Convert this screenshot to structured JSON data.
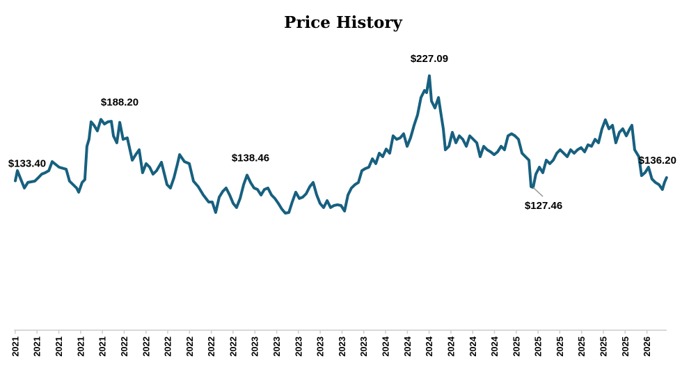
{
  "chart_data": {
    "type": "line",
    "title": "Price History",
    "xlabel": "",
    "ylabel": "",
    "ylim": [
      0,
      250
    ],
    "xlim": [
      2021.167,
      2026.15
    ],
    "grid": false,
    "line_color": "#17607f",
    "x_tick_values": [
      2021.167,
      2021.333,
      2021.5,
      2021.667,
      2021.833,
      2022.0,
      2022.167,
      2022.333,
      2022.5,
      2022.667,
      2022.833,
      2023.0,
      2023.167,
      2023.333,
      2023.5,
      2023.667,
      2023.833,
      2024.0,
      2024.167,
      2024.333,
      2024.5,
      2024.667,
      2024.833,
      2025.0,
      2025.167,
      2025.333,
      2025.5,
      2025.667,
      2025.833,
      2026.0
    ],
    "x_tick_labels": [
      "2021",
      "2021",
      "2021",
      "2021",
      "2021",
      "2022",
      "2022",
      "2022",
      "2022",
      "2022",
      "2022",
      "2023",
      "2023",
      "2023",
      "2023",
      "2023",
      "2023",
      "2024",
      "2024",
      "2024",
      "2024",
      "2024",
      "2024",
      "2025",
      "2025",
      "2025",
      "2025",
      "2025",
      "2025",
      "2026"
    ],
    "series": [
      {
        "x": [
          2021.167,
          2021.183,
          2021.21,
          2021.236,
          2021.263,
          2021.316,
          2021.343,
          2021.369,
          2021.396,
          2021.423,
          2021.449,
          2021.502,
          2021.556,
          2021.582,
          2021.636,
          2021.652,
          2021.678,
          2021.699,
          2021.715,
          2021.731,
          2021.747,
          2021.769,
          2021.795,
          2021.822,
          2021.849,
          2021.875,
          2021.902,
          2021.918,
          2021.944,
          2021.966,
          2021.992,
          2022.024,
          2022.062,
          2022.088,
          2022.115,
          2022.141,
          2022.168,
          2022.195,
          2022.221,
          2022.248,
          2022.285,
          2022.328,
          2022.354,
          2022.381,
          2022.408,
          2022.424,
          2022.461,
          2022.498,
          2022.53,
          2022.567,
          2022.605,
          2022.647,
          2022.674,
          2022.7,
          2022.727,
          2022.754,
          2022.78,
          2022.807,
          2022.834,
          2022.86,
          2022.887,
          2022.914,
          2022.94,
          2022.967,
          2022.994,
          2023.02,
          2023.047,
          2023.073,
          2023.1,
          2023.127,
          2023.153,
          2023.18,
          2023.206,
          2023.233,
          2023.26,
          2023.286,
          2023.313,
          2023.34,
          2023.366,
          2023.393,
          2023.42,
          2023.446,
          2023.473,
          2023.499,
          2023.526,
          2023.553,
          2023.579,
          2023.606,
          2023.632,
          2023.659,
          2023.686,
          2023.712,
          2023.739,
          2023.766,
          2023.792,
          2023.819,
          2023.845,
          2023.872,
          2023.899,
          2023.925,
          2023.952,
          2023.978,
          2024.005,
          2024.032,
          2024.058,
          2024.085,
          2024.112,
          2024.138,
          2024.165,
          2024.191,
          2024.218,
          2024.245,
          2024.271,
          2024.298,
          2024.314,
          2024.335,
          2024.351,
          2024.378,
          2024.405,
          2024.421,
          2024.442,
          2024.458,
          2024.485,
          2024.511,
          2024.538,
          2024.564,
          2024.591,
          2024.618,
          2024.644,
          2024.671,
          2024.698,
          2024.724,
          2024.751,
          2024.777,
          2024.804,
          2024.831,
          2024.857,
          2024.884,
          2024.91,
          2024.937,
          2024.964,
          2024.99,
          2025.017,
          2025.044,
          2025.07,
          2025.097,
          2025.113,
          2025.129,
          2025.15,
          2025.177,
          2025.203,
          2025.23,
          2025.257,
          2025.283,
          2025.31,
          2025.336,
          2025.363,
          2025.39,
          2025.416,
          2025.443,
          2025.469,
          2025.496,
          2025.523,
          2025.549,
          2025.576,
          2025.603,
          2025.629,
          2025.656,
          2025.682,
          2025.709,
          2025.736,
          2025.762,
          2025.789,
          2025.815,
          2025.842,
          2025.869,
          2025.885,
          2025.906,
          2025.938,
          2025.959,
          2025.985,
          2026.012,
          2026.038,
          2026.065,
          2026.092,
          2026.118,
          2026.134,
          2026.15
        ],
        "values": [
          133.4,
          142.4,
          134.4,
          126.9,
          131.9,
          133.1,
          136.2,
          139.3,
          140.6,
          142.4,
          150.5,
          145.5,
          143.7,
          133.1,
          126.9,
          123.2,
          131.9,
          134.4,
          164.2,
          170.4,
          186.0,
          182.9,
          177.9,
          188.2,
          184.1,
          186.0,
          186.5,
          173.5,
          167.3,
          185.5,
          170.4,
          171.7,
          151.8,
          156.7,
          161.1,
          140.6,
          148.7,
          145.5,
          139.3,
          142.4,
          149.9,
          130.0,
          126.9,
          136.2,
          148.7,
          156.7,
          150.5,
          148.7,
          133.1,
          128.1,
          120.7,
          114.4,
          114.4,
          105.1,
          118.8,
          123.8,
          126.9,
          120.7,
          113.2,
          109.5,
          117.6,
          130.0,
          138.46,
          131.9,
          126.9,
          125.6,
          120.7,
          125.6,
          126.9,
          120.7,
          117.6,
          113.2,
          108.2,
          104.5,
          105.1,
          114.4,
          123.2,
          117.6,
          118.8,
          121.9,
          128.1,
          131.9,
          120.7,
          113.2,
          109.5,
          115.7,
          109.5,
          111.3,
          112.0,
          111.3,
          106.4,
          120.7,
          126.9,
          130.0,
          131.9,
          142.4,
          144.3,
          145.5,
          153.0,
          148.7,
          158.0,
          154.9,
          161.7,
          158.0,
          173.5,
          170.4,
          171.7,
          175.4,
          164.2,
          171.7,
          182.9,
          192.2,
          207.7,
          214.0,
          212.1,
          227.09,
          204.6,
          198.4,
          207.7,
          195.3,
          179.8,
          161.1,
          164.2,
          176.6,
          167.3,
          173.5,
          170.4,
          164.2,
          173.5,
          170.4,
          167.3,
          154.9,
          164.2,
          161.1,
          159.2,
          156.7,
          159.2,
          164.2,
          161.1,
          173.5,
          175.4,
          173.5,
          170.4,
          158.0,
          154.9,
          151.8,
          128.1,
          127.46,
          139.3,
          145.5,
          140.6,
          151.8,
          148.7,
          151.8,
          158.0,
          161.1,
          158.0,
          154.9,
          161.1,
          158.0,
          161.1,
          163.0,
          159.2,
          165.5,
          164.2,
          170.4,
          167.3,
          179.8,
          187.8,
          179.8,
          182.9,
          167.3,
          176.6,
          179.8,
          173.5,
          179.8,
          182.9,
          161.1,
          154.9,
          138.0,
          140.6,
          145.5,
          135.0,
          131.9,
          130.0,
          125.6,
          131.9,
          136.2
        ]
      }
    ],
    "annotations": [
      {
        "label": "$133.40",
        "x": 2021.167,
        "value": 133.4,
        "position": "above-left"
      },
      {
        "label": "$188.20",
        "x": 2021.822,
        "value": 188.2,
        "position": "above"
      },
      {
        "label": "$138.46",
        "x": 2022.94,
        "value": 138.46,
        "position": "above"
      },
      {
        "label": "$227.09",
        "x": 2024.335,
        "value": 227.09,
        "position": "above"
      },
      {
        "label": "$127.46",
        "x": 2025.129,
        "value": 127.46,
        "position": "below-right"
      },
      {
        "label": "$136.20",
        "x": 2026.15,
        "value": 136.2,
        "position": "above-left"
      }
    ]
  }
}
